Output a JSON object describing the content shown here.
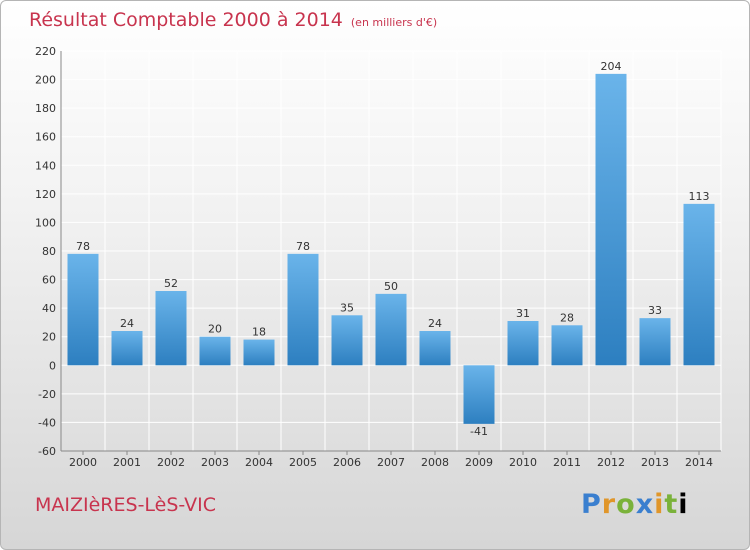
{
  "header": {
    "title": "Résultat Comptable 2000 à 2014",
    "subtitle": "(en milliers d'€)"
  },
  "footer": {
    "location": "MAIZIèRES-LèS-VIC",
    "logo": "Proxiti"
  },
  "chart_data": {
    "type": "bar",
    "title": "Résultat Comptable 2000 à 2014",
    "subtitle": "(en milliers d'€)",
    "categories": [
      "2000",
      "2001",
      "2002",
      "2003",
      "2004",
      "2005",
      "2006",
      "2007",
      "2008",
      "2009",
      "2010",
      "2011",
      "2012",
      "2013",
      "2014"
    ],
    "values": [
      78,
      24,
      52,
      20,
      18,
      78,
      35,
      50,
      24,
      -41,
      31,
      28,
      204,
      33,
      113
    ],
    "ylim": [
      -60,
      220
    ],
    "yticks": [
      -60,
      -40,
      -20,
      0,
      20,
      40,
      60,
      80,
      100,
      120,
      140,
      160,
      180,
      200,
      220
    ],
    "grid": true,
    "colors": {
      "bar_light": "#6ab4ea",
      "bar_dark": "#2d7fc0",
      "grid": "#ffffff",
      "axis": "#888888"
    }
  }
}
